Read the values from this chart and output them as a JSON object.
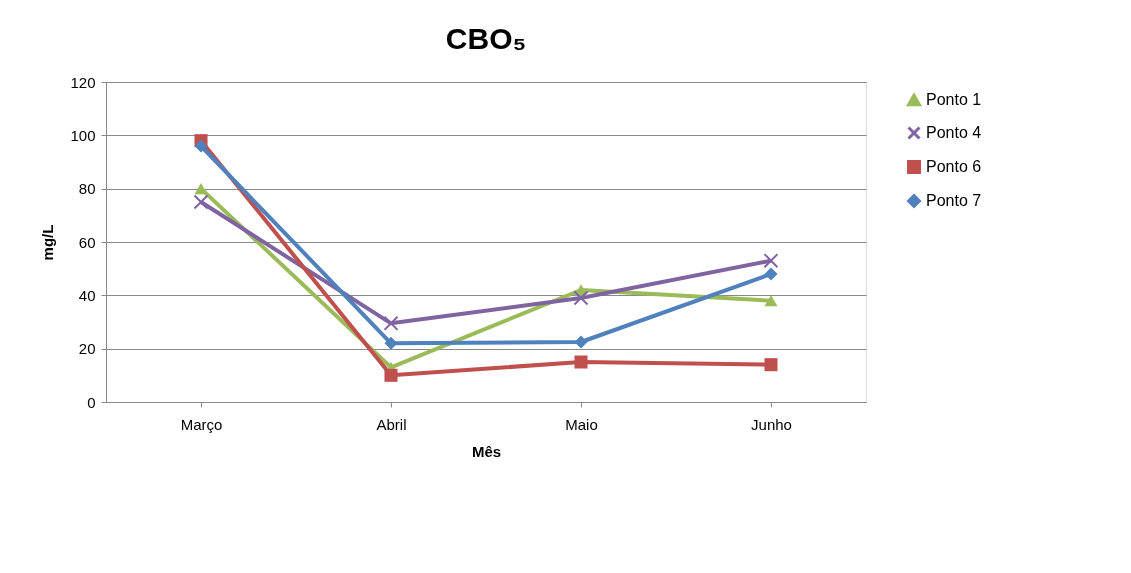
{
  "chart_data": {
    "type": "line",
    "title": "CBO₅",
    "xlabel": "Mês",
    "ylabel": "mg/L",
    "categories": [
      "Março",
      "Abril",
      "Maio",
      "Junho"
    ],
    "series": [
      {
        "name": "Ponto 1",
        "color": "#9bbb59",
        "marker": "triangle",
        "values": [
          80,
          13,
          42,
          38
        ]
      },
      {
        "name": "Ponto 4",
        "color": "#8064a2",
        "marker": "cross",
        "values": [
          75,
          29.5,
          39,
          53
        ]
      },
      {
        "name": "Ponto 6",
        "color": "#c0504d",
        "marker": "square",
        "values": [
          98,
          10,
          15,
          14
        ]
      },
      {
        "name": "Ponto 7",
        "color": "#4f81bd",
        "marker": "diamond",
        "values": [
          96,
          22,
          22.5,
          48
        ]
      }
    ],
    "ylim": [
      0,
      120
    ],
    "yticks": [
      0,
      20,
      40,
      60,
      80,
      100,
      120
    ],
    "grid": "y",
    "legend": "right",
    "line_style": "solid"
  }
}
